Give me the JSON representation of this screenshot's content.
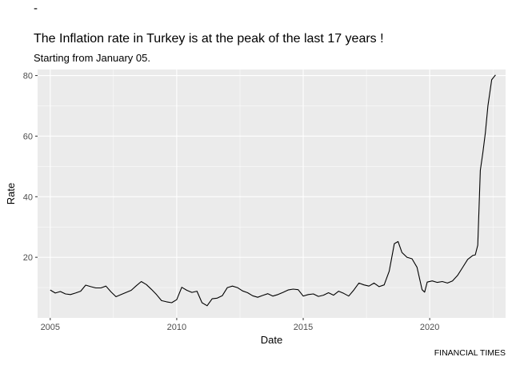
{
  "header": {
    "dash": "-",
    "title": "The Inflation rate in Turkey is at the peak of the last 17 years !",
    "subtitle": "Starting from January 05."
  },
  "caption": "FINANCIAL TIMES",
  "colors": {
    "panel": "#ebebeb",
    "grid": "#ffffff",
    "line": "#000000"
  },
  "chart_data": {
    "type": "line",
    "title": "The Inflation rate in Turkey is at the peak of the last 17 years !",
    "subtitle": "Starting from January 05.",
    "xlabel": "Date",
    "ylabel": "Rate",
    "xlim": [
      2004.5,
      2023.0
    ],
    "ylim": [
      0,
      82
    ],
    "x_ticks": [
      2005,
      2010,
      2015,
      2020
    ],
    "y_ticks": [
      20,
      40,
      60,
      80
    ],
    "grid": true,
    "legend": "none",
    "series": [
      {
        "x": [
          2005.0,
          2005.2,
          2005.4,
          2005.6,
          2005.8,
          2006.0,
          2006.2,
          2006.4,
          2006.6,
          2006.8,
          2007.0,
          2007.2,
          2007.4,
          2007.6,
          2007.8,
          2008.0,
          2008.2,
          2008.4,
          2008.6,
          2008.8,
          2009.0,
          2009.2,
          2009.4,
          2009.6,
          2009.8,
          2010.0,
          2010.2,
          2010.4,
          2010.6,
          2010.8,
          2011.0,
          2011.2,
          2011.4,
          2011.6,
          2011.8,
          2012.0,
          2012.2,
          2012.4,
          2012.6,
          2012.8,
          2013.0,
          2013.2,
          2013.4,
          2013.6,
          2013.8,
          2014.0,
          2014.2,
          2014.4,
          2014.6,
          2014.8,
          2015.0,
          2015.2,
          2015.4,
          2015.6,
          2015.8,
          2016.0,
          2016.2,
          2016.4,
          2016.6,
          2016.8,
          2017.0,
          2017.2,
          2017.4,
          2017.6,
          2017.8,
          2018.0,
          2018.2,
          2018.4,
          2018.6,
          2018.75,
          2018.9,
          2019.1,
          2019.3,
          2019.5,
          2019.7,
          2019.8,
          2019.9,
          2020.1,
          2020.3,
          2020.5,
          2020.7,
          2020.9,
          2021.1,
          2021.3,
          2021.5,
          2021.7,
          2021.8,
          2021.9,
          2022.0,
          2022.1,
          2022.2,
          2022.3,
          2022.45,
          2022.6
        ],
        "y": [
          9.2,
          8.2,
          8.7,
          7.9,
          7.7,
          8.2,
          8.8,
          10.8,
          10.3,
          9.9,
          9.9,
          10.5,
          8.6,
          7.0,
          7.7,
          8.4,
          9.1,
          10.6,
          12.0,
          11.0,
          9.4,
          7.7,
          5.7,
          5.3,
          5.0,
          6.0,
          10.1,
          9.1,
          8.4,
          8.8,
          5.0,
          4.0,
          6.3,
          6.5,
          7.3,
          10.0,
          10.5,
          10.0,
          8.9,
          8.3,
          7.3,
          6.8,
          7.4,
          8.0,
          7.2,
          7.7,
          8.4,
          9.2,
          9.5,
          9.3,
          7.2,
          7.7,
          7.9,
          7.1,
          7.5,
          8.3,
          7.5,
          8.8,
          8.1,
          7.2,
          9.2,
          11.5,
          10.9,
          10.5,
          11.5,
          10.3,
          10.9,
          15.4,
          24.5,
          25.2,
          21.6,
          20.0,
          19.5,
          16.7,
          9.3,
          8.5,
          11.8,
          12.2,
          11.7,
          12.0,
          11.5,
          12.2,
          14.0,
          16.6,
          19.3,
          20.6,
          20.8,
          24.0,
          48.7,
          54.4,
          61.1,
          70.0,
          78.6,
          80.2
        ]
      }
    ]
  }
}
